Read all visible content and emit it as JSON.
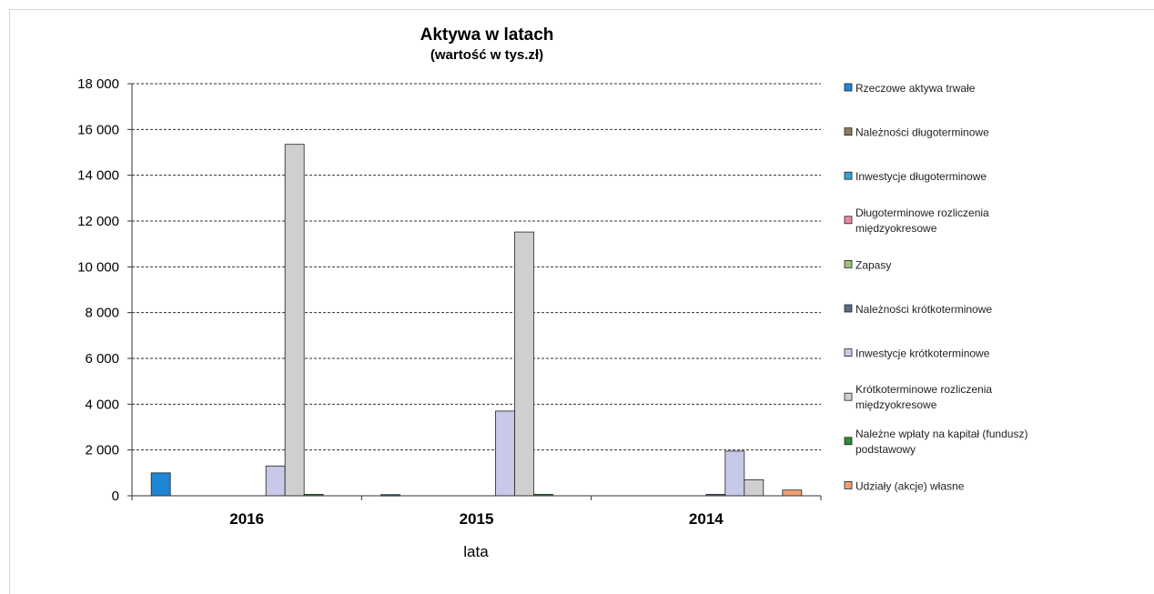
{
  "chart_data": {
    "type": "bar",
    "title": "Aktywa w latach",
    "subtitle": "(wartość w tys.zł)",
    "xlabel": "lata",
    "ylabel": "",
    "categories": [
      "2016",
      "2015",
      "2014"
    ],
    "ylim": [
      0,
      18000
    ],
    "yticks": [
      "0",
      "2 000",
      "4 000",
      "6 000",
      "8 000",
      "10 000",
      "12 000",
      "14 000",
      "16 000",
      "18 000"
    ],
    "grid": true,
    "legend_position": "right",
    "series": [
      {
        "name": "Rzeczowe aktywa trwałe",
        "color": "#1f86d6",
        "values": [
          1000,
          50,
          0
        ]
      },
      {
        "name": "Należności długoterminowe",
        "color": "#8b7d5a",
        "values": [
          0,
          0,
          0
        ]
      },
      {
        "name": "Inwestycje długoterminowe",
        "color": "#3aa0d8",
        "values": [
          0,
          0,
          0
        ]
      },
      {
        "name": "Długoterminowe rozliczenia międzyokresowe",
        "color": "#e88aa0",
        "values": [
          0,
          0,
          0
        ]
      },
      {
        "name": "Zapasy",
        "color": "#9fc27a",
        "values": [
          0,
          0,
          0
        ]
      },
      {
        "name": "Należności krótkoterminowe",
        "color": "#5b6a8a",
        "values": [
          0,
          0,
          60
        ]
      },
      {
        "name": "Inwestycje krótkoterminowe",
        "color": "#c8c8e8",
        "values": [
          1300,
          3700,
          1950
        ]
      },
      {
        "name": "Krótkoterminowe rozliczenia międzyokresowe",
        "color": "#cfcfcf",
        "values": [
          15350,
          11520,
          700
        ]
      },
      {
        "name": "Należne wpłaty na kapitał (fundusz) podstawowy",
        "color": "#2e8b3a",
        "values": [
          60,
          60,
          0
        ]
      },
      {
        "name": "Udziały (akcje) własne",
        "color": "#f0a070",
        "values": [
          0,
          0,
          250
        ]
      }
    ]
  }
}
